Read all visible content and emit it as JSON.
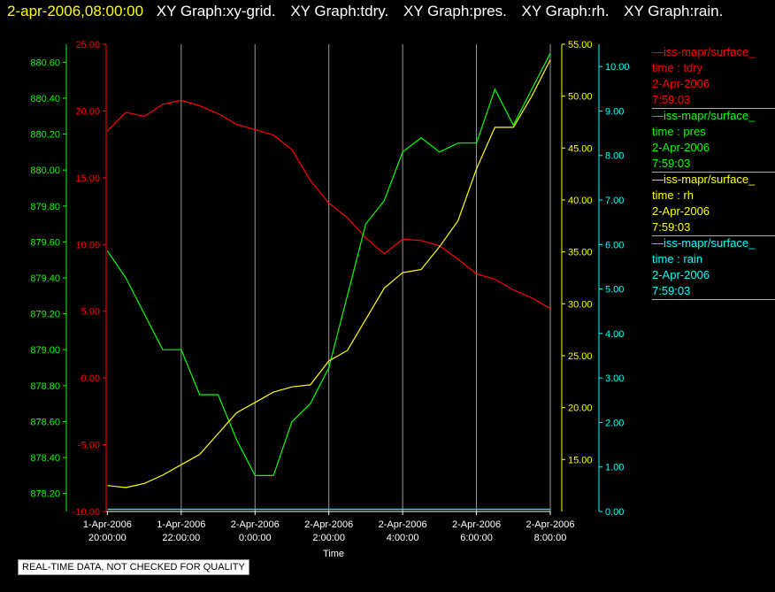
{
  "header": {
    "time": "2-apr-2006,08:00:00",
    "titles": [
      "XY Graph:xy-grid.",
      "XY Graph:tdry.",
      "XY Graph:pres.",
      "XY Graph:rh.",
      "XY Graph:rain."
    ]
  },
  "legend": [
    {
      "name": "—iss-mapr/surface_",
      "time": "time : tdry",
      "date": "2-Apr-2006",
      "clock": "7:59:03",
      "color": "#ff0000"
    },
    {
      "name": "—iss-mapr/surface_",
      "time": "time : pres",
      "date": "2-Apr-2006",
      "clock": "7:59:03",
      "color": "#00ff00"
    },
    {
      "name": "—iss-mapr/surface_",
      "time": "time : rh",
      "date": "2-Apr-2006",
      "clock": "7:59:03",
      "color": "#ffff00"
    },
    {
      "name": "—iss-mapr/surface_",
      "time": "time : rain",
      "date": "2-Apr-2006",
      "clock": "7:59:03",
      "color": "#00ffff"
    }
  ],
  "note": "REAL-TIME DATA, NOT CHECKED FOR QUALITY",
  "chart_data": {
    "type": "line",
    "xlabel": "Time",
    "x_ticks": [
      [
        "1-Apr-2006",
        "20:00:00"
      ],
      [
        "1-Apr-2006",
        "22:00:00"
      ],
      [
        "2-Apr-2006",
        "0:00:00"
      ],
      [
        "2-Apr-2006",
        "2:00:00"
      ],
      [
        "2-Apr-2006",
        "4:00:00"
      ],
      [
        "2-Apr-2006",
        "6:00:00"
      ],
      [
        "2-Apr-2006",
        "8:00:00"
      ]
    ],
    "xlim": [
      "2006-04-01 19:58",
      "2006-04-02 08:00"
    ],
    "grid": "vertical",
    "axes": [
      {
        "id": "tdry",
        "color": "#ff0000",
        "ylim": [
          -10,
          25
        ],
        "ticks": [
          "25.00",
          "20.00",
          "15.00",
          "10.00",
          "5.00",
          "0.00",
          "-5.00",
          "-10.00"
        ]
      },
      {
        "id": "pres",
        "color": "#00ff00",
        "ylim": [
          878.1,
          880.7
        ],
        "ticks": [
          "880.60",
          "880.40",
          "880.20",
          "880.00",
          "879.80",
          "879.60",
          "879.40",
          "879.20",
          "879.00",
          "878.80",
          "878.60",
          "878.40",
          "878.20"
        ]
      },
      {
        "id": "rh",
        "color": "#ffff00",
        "ylim": [
          10,
          55
        ],
        "ticks": [
          "55.00",
          "50.00",
          "45.00",
          "40.00",
          "35.00",
          "30.00",
          "25.00",
          "20.00",
          "15.00"
        ]
      },
      {
        "id": "rain",
        "color": "#00ffff",
        "ylim": [
          0,
          10.5
        ],
        "ticks": [
          "10.00",
          "9.00",
          "8.00",
          "7.00",
          "6.00",
          "5.00",
          "4.00",
          "3.00",
          "2.00",
          "1.00",
          "0.00"
        ]
      }
    ],
    "series": [
      {
        "axis": "tdry",
        "color": "#ff0000",
        "x": [
          "2006-04-01 20:00",
          "2006-04-01 20:30",
          "2006-04-01 21:00",
          "2006-04-01 21:30",
          "2006-04-01 22:00",
          "2006-04-01 22:30",
          "2006-04-01 23:00",
          "2006-04-01 23:30",
          "2006-04-02 00:00",
          "2006-04-02 00:30",
          "2006-04-02 01:00",
          "2006-04-02 01:30",
          "2006-04-02 02:00",
          "2006-04-02 02:30",
          "2006-04-02 03:00",
          "2006-04-02 03:30",
          "2006-04-02 04:00",
          "2006-04-02 04:30",
          "2006-04-02 05:00",
          "2006-04-02 05:30",
          "2006-04-02 06:00",
          "2006-04-02 06:30",
          "2006-04-02 07:00",
          "2006-04-02 07:30",
          "2006-04-02 08:00"
        ],
        "values": [
          18.5,
          19.9,
          19.6,
          20.5,
          20.8,
          20.4,
          19.8,
          19.0,
          18.6,
          18.2,
          17.1,
          14.8,
          13.1,
          12.0,
          10.5,
          9.3,
          10.4,
          10.3,
          9.9,
          8.9,
          7.8,
          7.4,
          6.6,
          6.0,
          5.2
        ]
      },
      {
        "axis": "pres",
        "color": "#00ff00",
        "x": [
          "2006-04-01 20:00",
          "2006-04-01 20:30",
          "2006-04-01 21:00",
          "2006-04-01 21:30",
          "2006-04-01 22:00",
          "2006-04-01 22:30",
          "2006-04-01 23:00",
          "2006-04-01 23:30",
          "2006-04-02 00:00",
          "2006-04-02 00:30",
          "2006-04-02 01:00",
          "2006-04-02 01:30",
          "2006-04-02 02:00",
          "2006-04-02 02:30",
          "2006-04-02 03:00",
          "2006-04-02 03:30",
          "2006-04-02 04:00",
          "2006-04-02 04:30",
          "2006-04-02 05:00",
          "2006-04-02 05:30",
          "2006-04-02 06:00",
          "2006-04-02 06:30",
          "2006-04-02 07:00",
          "2006-04-02 07:30",
          "2006-04-02 08:00"
        ],
        "values": [
          879.55,
          879.4,
          879.2,
          879.0,
          879.0,
          878.75,
          878.75,
          878.5,
          878.3,
          878.3,
          878.6,
          878.7,
          878.9,
          879.3,
          879.7,
          879.83,
          880.1,
          880.18,
          880.1,
          880.15,
          880.15,
          880.45,
          880.25,
          880.45,
          880.65
        ]
      },
      {
        "axis": "rh",
        "color": "#ffff00",
        "x": [
          "2006-04-01 20:00",
          "2006-04-01 20:30",
          "2006-04-01 21:00",
          "2006-04-01 21:30",
          "2006-04-01 22:00",
          "2006-04-01 22:30",
          "2006-04-01 23:00",
          "2006-04-01 23:30",
          "2006-04-02 00:00",
          "2006-04-02 00:30",
          "2006-04-02 01:00",
          "2006-04-02 01:30",
          "2006-04-02 02:00",
          "2006-04-02 02:30",
          "2006-04-02 03:00",
          "2006-04-02 03:30",
          "2006-04-02 04:00",
          "2006-04-02 04:30",
          "2006-04-02 05:00",
          "2006-04-02 05:30",
          "2006-04-02 06:00",
          "2006-04-02 06:30",
          "2006-04-02 07:00",
          "2006-04-02 07:30",
          "2006-04-02 08:00"
        ],
        "values": [
          12.5,
          12.3,
          12.7,
          13.5,
          14.5,
          15.5,
          17.5,
          19.5,
          20.5,
          21.5,
          22.0,
          22.2,
          24.5,
          25.5,
          28.5,
          31.5,
          33.0,
          33.3,
          35.5,
          38.0,
          43.0,
          47.0,
          47.0,
          50.0,
          53.5
        ]
      },
      {
        "axis": "rain",
        "color": "#00ffff",
        "x": [
          "2006-04-01 20:00",
          "2006-04-02 08:00"
        ],
        "values": [
          0.05,
          0.05
        ]
      }
    ]
  }
}
